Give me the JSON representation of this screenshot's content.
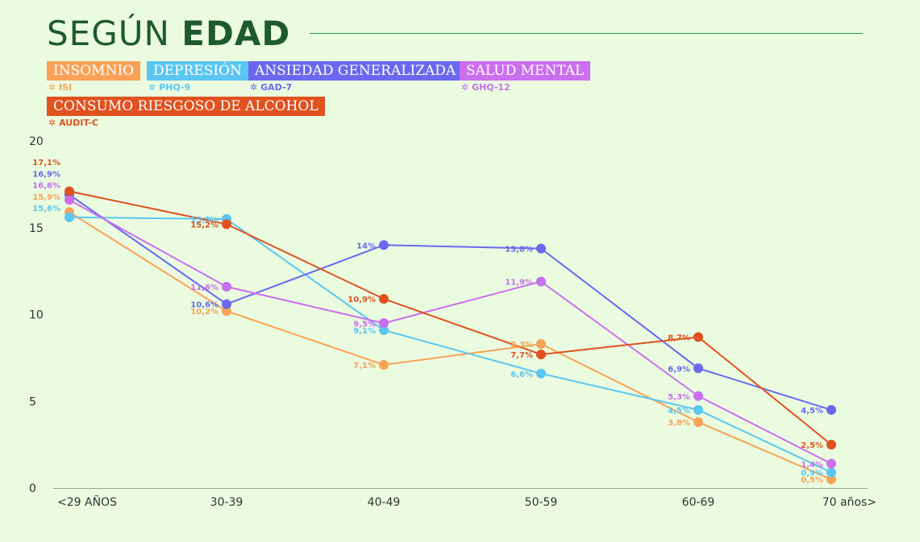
{
  "header": {
    "title_light": "SEGÚN",
    "title_bold": "EDAD"
  },
  "chart_data": {
    "type": "line",
    "title": "SEGÚN EDAD",
    "categories": [
      "<29 AÑOS",
      "30-39",
      "40-49",
      "50-59",
      "60-69",
      "70 años>"
    ],
    "ylim": [
      0,
      20
    ],
    "yticks": [
      0,
      5,
      10,
      15,
      20
    ],
    "grid": false,
    "legend_placement": "top-left",
    "series": [
      {
        "name": "INSOMNIO",
        "scale": "ISI",
        "color": "#f9a258",
        "values": [
          15.9,
          10.2,
          7.1,
          8.3,
          3.8,
          0.5
        ],
        "labels": [
          "15,9%",
          "10,2%",
          "7,1%",
          "8,3%",
          "3,8%",
          "0,5%"
        ]
      },
      {
        "name": "DEPRESIÓN",
        "scale": "PHQ-9",
        "color": "#5bc6f2",
        "values": [
          15.6,
          15.5,
          9.1,
          6.6,
          4.5,
          0.9
        ],
        "labels": [
          "15,6%",
          "15,5%",
          "9,1%",
          "6,6%",
          "4,5%",
          "0,9%"
        ]
      },
      {
        "name": "ANSIEDAD GENERALIZADA",
        "scale": "GAD-7",
        "color": "#6a68ee",
        "values": [
          16.9,
          10.6,
          14,
          13.8,
          6.9,
          4.5
        ],
        "labels": [
          "16,9%",
          "10,6%",
          "14%",
          "13,8%",
          "6,9%",
          "4,5%"
        ]
      },
      {
        "name": "SALUD MENTAL",
        "scale": "GHQ-12",
        "color": "#c96ff0",
        "values": [
          16.6,
          11.6,
          9.5,
          11.9,
          5.3,
          1.4
        ],
        "labels": [
          "16,6%",
          "11,6%",
          "9,5%",
          "11,9%",
          "5,3%",
          "1,4%"
        ]
      },
      {
        "name": "CONSUMO RIESGOSO DE ALCOHOL",
        "scale": "AUDIT-C",
        "color": "#e0521f",
        "values": [
          17.1,
          15.2,
          10.9,
          7.7,
          8.7,
          2.5
        ],
        "labels": [
          "17,1%",
          "15,2%",
          "10,9%",
          "7,7%",
          "8,7%",
          "2,5%"
        ]
      }
    ]
  }
}
